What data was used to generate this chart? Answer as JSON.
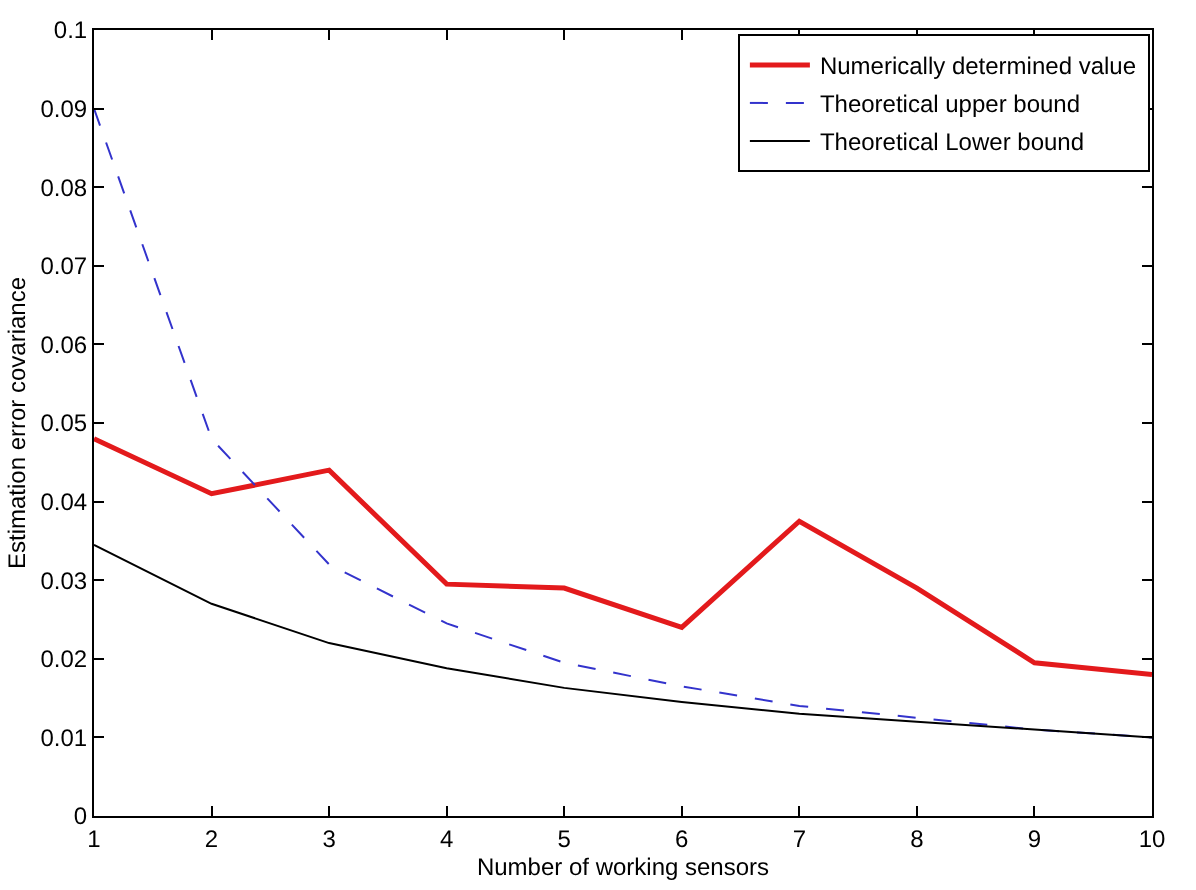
{
  "chart_data": {
    "type": "line",
    "xlabel": "Number of working sensors",
    "ylabel": "Estimation error covariance",
    "x": [
      1,
      2,
      3,
      4,
      5,
      6,
      7,
      8,
      9,
      10
    ],
    "series": [
      {
        "name": "Numerically determined value",
        "color": "#e31a1c",
        "line_style": "solid",
        "values": [
          0.048,
          0.041,
          0.044,
          0.0295,
          0.029,
          0.024,
          0.0375,
          0.029,
          0.0195,
          0.018
        ]
      },
      {
        "name": "Theoretical upper bound",
        "color": "#3333cc",
        "line_style": "dashed",
        "values": [
          0.09,
          0.048,
          0.032,
          0.0245,
          0.0195,
          0.0165,
          0.014,
          0.0125,
          0.011,
          0.01
        ]
      },
      {
        "name": "Theoretical Lower bound",
        "color": "#000000",
        "line_style": "solid",
        "values": [
          0.0345,
          0.027,
          0.022,
          0.0188,
          0.0163,
          0.0145,
          0.013,
          0.012,
          0.011,
          0.01
        ]
      }
    ],
    "xlim": [
      1,
      10
    ],
    "xticks": [
      1,
      2,
      3,
      4,
      5,
      6,
      7,
      8,
      9,
      10
    ],
    "ylim": [
      0,
      0.1
    ],
    "yticks": [
      0,
      0.01,
      0.02,
      0.03,
      0.04,
      0.05,
      0.06,
      0.07,
      0.08,
      0.09,
      0.1
    ],
    "legend": "top right",
    "marker": "none"
  }
}
